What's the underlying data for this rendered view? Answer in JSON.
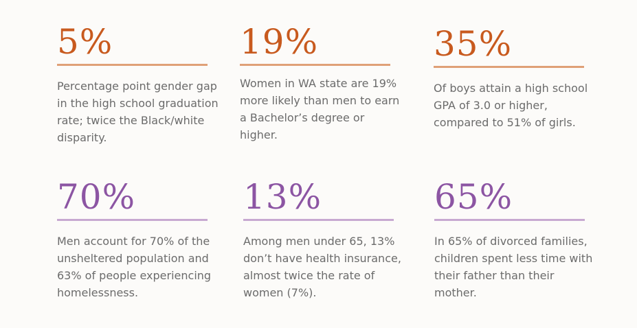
{
  "accent_colors": {
    "orange_number": "#c85a1e",
    "orange_rule": "#dfa077",
    "purple_number": "#8c55a3",
    "purple_rule": "#c7a9d1"
  },
  "stats": [
    {
      "value": "5%",
      "description": "Percentage point gender gap in the high school graduation rate; twice the Black/white disparity."
    },
    {
      "value": "19%",
      "description": "Women in WA state are 19% more likely than men to earn a Bachelor’s degree or higher."
    },
    {
      "value": "35%",
      "description": "Of boys attain a high school GPA of 3.0 or higher, compared to 51% of girls."
    },
    {
      "value": "70%",
      "description": "Men account for 70% of the unsheltered population and 63% of people experiencing homelessness."
    },
    {
      "value": "13%",
      "description": "Among men under 65, 13% don’t have health insurance, almost twice the rate of women (7%)."
    },
    {
      "value": "65%",
      "description": "In 65% of divorced families, children spent less time with their father than their mother."
    }
  ]
}
